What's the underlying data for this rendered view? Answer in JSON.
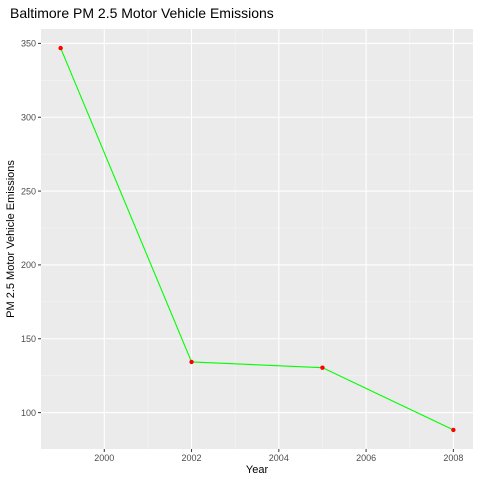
{
  "chart_data": {
    "type": "line",
    "title": "Baltimore PM 2.5 Motor Vehicle Emissions",
    "xlabel": "Year",
    "ylabel": "PM 2.5 Motor Vehicle Emissions",
    "x": [
      1999,
      2002,
      2005,
      2008
    ],
    "values": [
      346.82,
      134.31,
      130.43,
      88.28
    ],
    "xlim": [
      1998.55,
      2008.45
    ],
    "ylim": [
      75.35,
      359.75
    ],
    "x_ticks": [
      2000,
      2002,
      2004,
      2006,
      2008
    ],
    "x_tick_labels": [
      "2000",
      "2002",
      "2004",
      "2006",
      "2008"
    ],
    "y_ticks": [
      100,
      150,
      200,
      250,
      300,
      350
    ],
    "y_tick_labels": [
      "100",
      "150",
      "200",
      "250",
      "300",
      "350"
    ],
    "grid": true,
    "legend": "none",
    "colors": {
      "line": "#00ff00",
      "points": "#ff0000",
      "panel": "#ebebeb",
      "grid_major": "#ffffff",
      "grid_minor": "#f5f5f5",
      "tick": "#333333"
    }
  }
}
